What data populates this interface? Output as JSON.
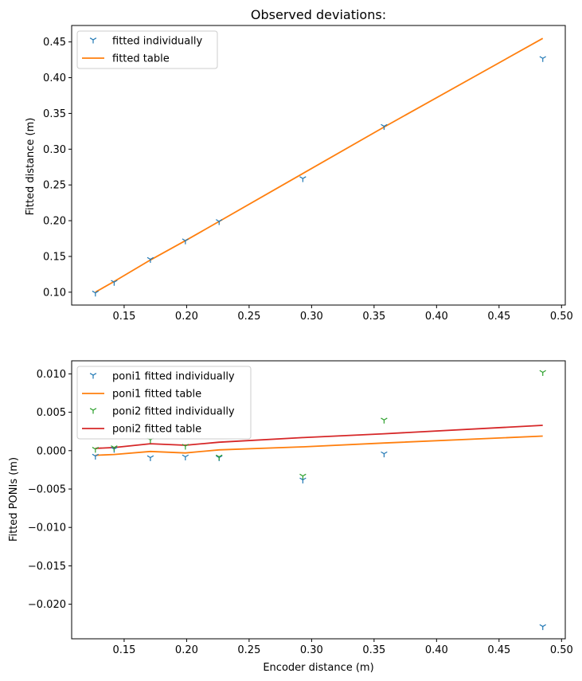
{
  "chart_data": [
    {
      "type": "line",
      "title": "Observed deviations:",
      "xlabel": "",
      "ylabel": "Fitted distance (m)",
      "xlim": [
        0.108,
        0.503
      ],
      "ylim": [
        0.082,
        0.473
      ],
      "xticks": [
        "0.15",
        "0.20",
        "0.25",
        "0.30",
        "0.35",
        "0.40",
        "0.45",
        "0.50"
      ],
      "yticks": [
        "0.10",
        "0.15",
        "0.20",
        "0.25",
        "0.30",
        "0.35",
        "0.40",
        "0.45"
      ],
      "legend_position": "top-left",
      "series": [
        {
          "name": "fitted individually",
          "style": "marker",
          "color": "#1f77b4",
          "x": [
            0.127,
            0.142,
            0.171,
            0.199,
            0.226,
            0.293,
            0.358,
            0.485
          ],
          "y": [
            0.099,
            0.114,
            0.146,
            0.172,
            0.199,
            0.259,
            0.332,
            0.427
          ]
        },
        {
          "name": "fitted table",
          "style": "line",
          "color": "#ff7f0e",
          "x": [
            0.127,
            0.142,
            0.171,
            0.199,
            0.226,
            0.293,
            0.358,
            0.485
          ],
          "y": [
            0.1,
            0.115,
            0.145,
            0.172,
            0.199,
            0.266,
            0.331,
            0.455
          ]
        }
      ]
    },
    {
      "type": "line",
      "title": "",
      "xlabel": "Encoder distance (m)",
      "ylabel": "Fitted PONIs (m)",
      "xlim": [
        0.108,
        0.503
      ],
      "ylim": [
        -0.0245,
        0.0117
      ],
      "xticks": [
        "0.15",
        "0.20",
        "0.25",
        "0.30",
        "0.35",
        "0.40",
        "0.45",
        "0.50"
      ],
      "yticks": [
        "0.010",
        "0.005",
        "0.000",
        "−0.005",
        "−0.010",
        "−0.015",
        "−0.020"
      ],
      "legend_position": "top-left",
      "series": [
        {
          "name": "poni1 fitted individually",
          "style": "marker",
          "color": "#1f77b4",
          "x": [
            0.127,
            0.142,
            0.171,
            0.199,
            0.226,
            0.293,
            0.358,
            0.485
          ],
          "y": [
            -0.0007,
            0.0002,
            -0.0009,
            -0.0008,
            -0.0009,
            -0.0038,
            -0.0004,
            -0.0229
          ]
        },
        {
          "name": "poni1 fitted table",
          "style": "line",
          "color": "#ff7f0e",
          "x": [
            0.127,
            0.142,
            0.171,
            0.199,
            0.226,
            0.293,
            0.358,
            0.485
          ],
          "y": [
            -0.0006,
            -0.0005,
            -0.0001,
            -0.0003,
            0.0001,
            0.0005,
            0.001,
            0.0019
          ]
        },
        {
          "name": "poni2 fitted individually",
          "style": "marker",
          "color": "#2ca02c",
          "x": [
            0.127,
            0.142,
            0.171,
            0.199,
            0.226,
            0.293,
            0.358,
            0.485
          ],
          "y": [
            0.0002,
            0.0004,
            0.0014,
            0.0006,
            -0.0008,
            -0.0033,
            0.004,
            0.0102
          ]
        },
        {
          "name": "poni2 fitted table",
          "style": "line",
          "color": "#d62728",
          "x": [
            0.127,
            0.142,
            0.171,
            0.199,
            0.226,
            0.293,
            0.358,
            0.485
          ],
          "y": [
            0.0003,
            0.0004,
            0.0009,
            0.0007,
            0.0011,
            0.0017,
            0.0022,
            0.0033
          ]
        }
      ]
    }
  ]
}
